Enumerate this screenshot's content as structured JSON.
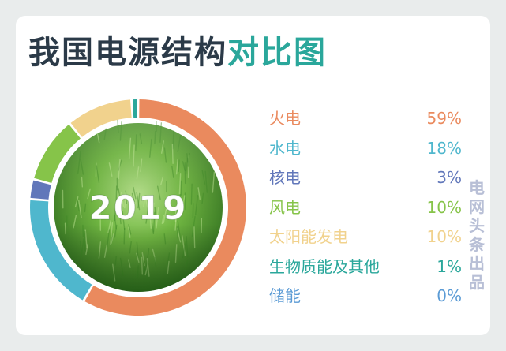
{
  "title": {
    "main": "我国电源结构",
    "accent": "对比图"
  },
  "center_label": "2019",
  "watermark": "电网头条出品",
  "chart_data": {
    "type": "pie",
    "title": "我国电源结构对比图",
    "center_label": "2019",
    "unit": "%",
    "categories": [
      "火电",
      "水电",
      "核电",
      "风电",
      "太阳能发电",
      "生物质能及其他",
      "储能"
    ],
    "values": [
      59,
      18,
      3,
      10,
      10,
      1,
      0
    ],
    "labels": [
      "59%",
      "18%",
      "3%",
      "10%",
      "10%",
      "1%",
      "0%"
    ],
    "colors": [
      "#ea8a5e",
      "#4fb7cd",
      "#6177ba",
      "#86c449",
      "#f1d28d",
      "#2aa79b",
      "#5b9bd5"
    ],
    "legend": "right"
  }
}
